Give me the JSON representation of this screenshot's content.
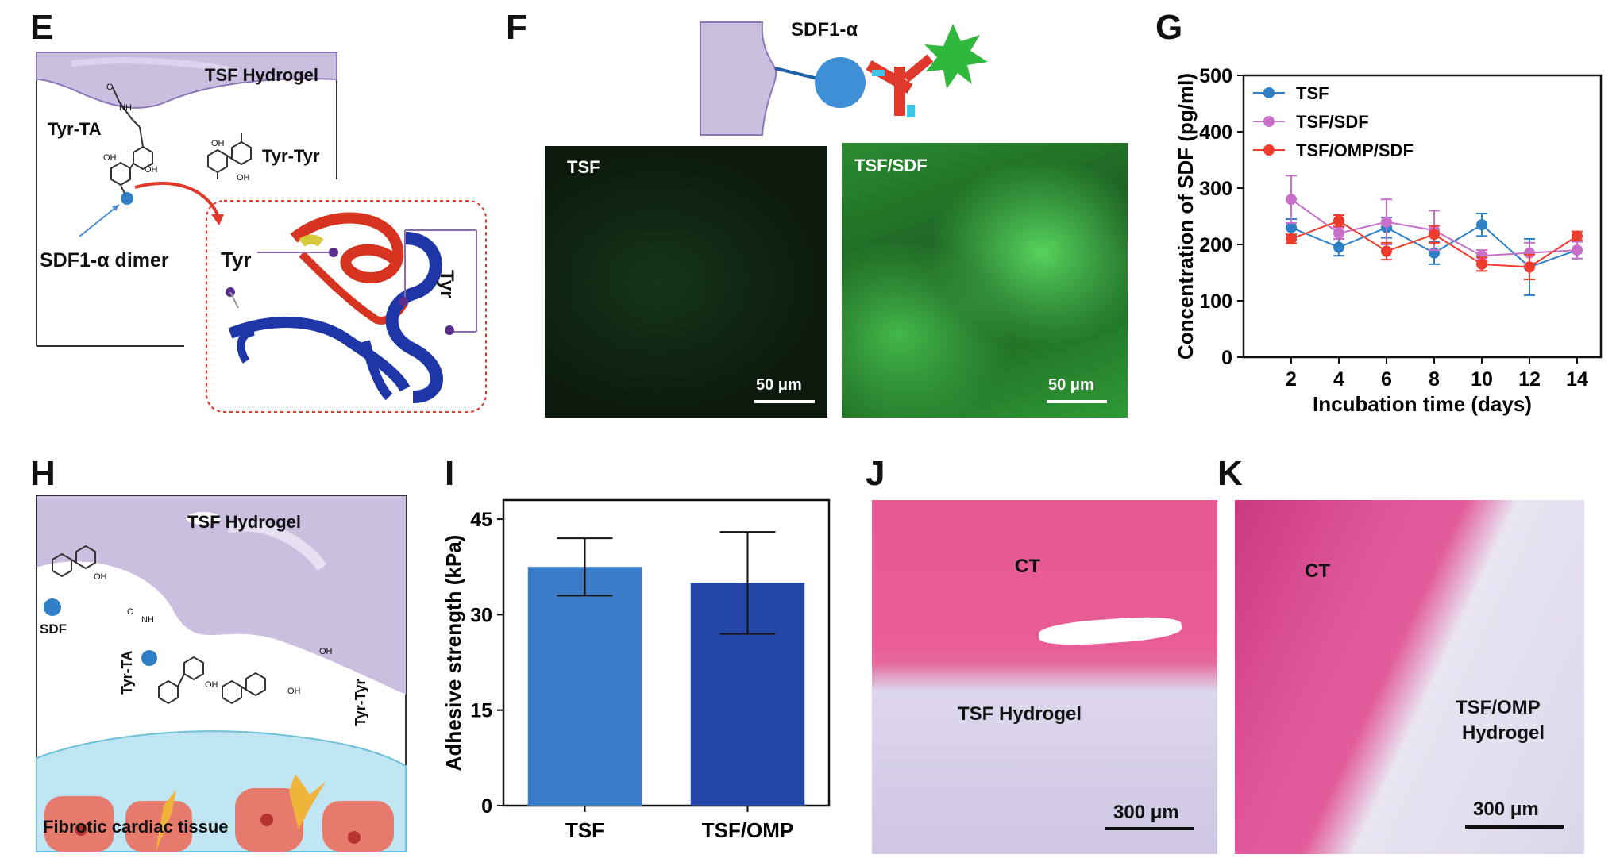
{
  "panel_labels": {
    "e": "E",
    "f": "F",
    "g": "G",
    "h": "H",
    "i": "I",
    "j": "J",
    "k": "K"
  },
  "panel_e": {
    "hydrogel_label": "TSF Hydrogel",
    "tyr_ta_label": "Tyr-TA",
    "tyr_tyr_label": "Tyr-Tyr",
    "dimer_label": "SDF1-α dimer",
    "tyr_left_label": "Tyr",
    "tyr_right_label": "Tyr",
    "chem_nh": "NH",
    "chem_o": "O",
    "chem_oh": "OH"
  },
  "panel_f": {
    "schematic_label": "SDF1-α",
    "image_left_label": "TSF",
    "image_right_label": "TSF/SDF",
    "scale_label": "50 μm"
  },
  "panel_h": {
    "hydrogel_label": "TSF Hydrogel",
    "sdf_label": "SDF",
    "tyr_ta_label": "Tyr-TA",
    "tyr_tyr_label": "Tyr-Tyr",
    "tissue_label": "Fibrotic cardiac tissue",
    "chem_nh": "NH",
    "chem_o": "O",
    "chem_oh": "OH"
  },
  "panel_j": {
    "ct_label": "CT",
    "hydrogel_label": "TSF Hydrogel",
    "scale_label": "300 μm"
  },
  "panel_k": {
    "ct_label": "CT",
    "hydrogel_label_1": "TSF/OMP",
    "hydrogel_label_2": "Hydrogel",
    "scale_label": "300 μm"
  },
  "chart_data": [
    {
      "id": "G",
      "type": "line",
      "title": "",
      "xlabel": "Incubation time (days)",
      "ylabel": "Concentration of SDF (pg/ml)",
      "x": [
        2,
        4,
        6,
        8,
        10,
        12,
        14
      ],
      "ylim": [
        0,
        500
      ],
      "yticks": [
        0,
        100,
        200,
        300,
        400,
        500
      ],
      "legend_position": "top-left",
      "series": [
        {
          "name": "TSF",
          "color": "#2f7fc7",
          "values": [
            230,
            195,
            230,
            185,
            235,
            160,
            190
          ],
          "errors": [
            15,
            15,
            18,
            20,
            20,
            50,
            15
          ]
        },
        {
          "name": "TSF/SDF",
          "color": "#c86fc9",
          "values": [
            280,
            220,
            240,
            225,
            180,
            185,
            190
          ],
          "errors": [
            42,
            10,
            40,
            35,
            10,
            18,
            15
          ]
        },
        {
          "name": "TSF/OMP/SDF",
          "color": "#ee3b2b",
          "values": [
            210,
            242,
            188,
            218,
            165,
            160,
            215
          ],
          "errors": [
            8,
            10,
            15,
            15,
            12,
            22,
            8
          ]
        }
      ]
    },
    {
      "id": "I",
      "type": "bar",
      "title": "",
      "xlabel": "",
      "ylabel": "Adhesive strength (kPa)",
      "categories": [
        "TSF",
        "TSF/OMP"
      ],
      "values": [
        37.5,
        35.0
      ],
      "errors": [
        4.5,
        8.0
      ],
      "colors": [
        "#3b7cc9",
        "#2345a6"
      ],
      "ylim": [
        0,
        48
      ],
      "yticks": [
        0,
        15,
        30,
        45
      ]
    }
  ]
}
